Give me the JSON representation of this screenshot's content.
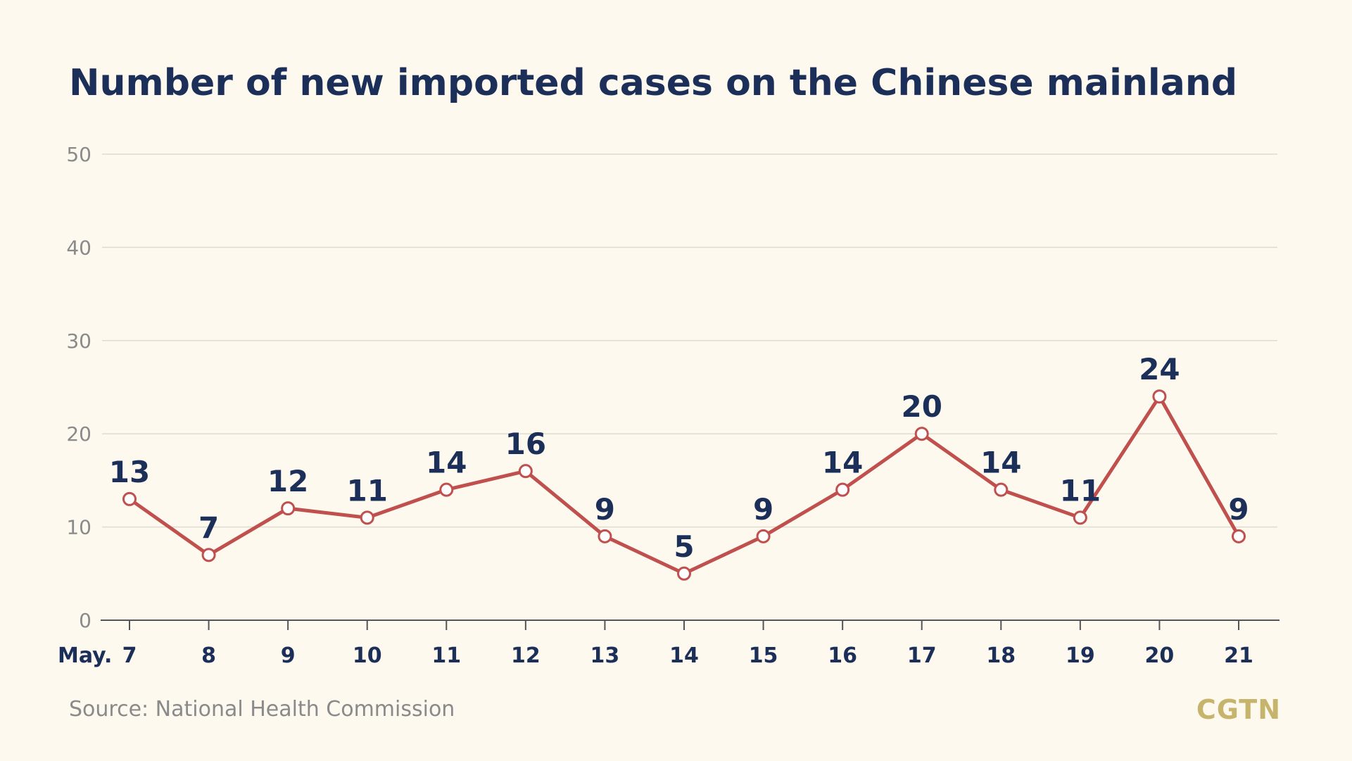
{
  "header": {
    "title": "Number of new imported cases on the Chinese mainland"
  },
  "footer": {
    "source": "Source: National Health Commission",
    "logo_text": "CGTN"
  },
  "chart_data": {
    "type": "line",
    "title": "Number of new imported cases on the Chinese mainland",
    "xlabel": "",
    "ylabel": "",
    "x_prefix": "May.",
    "categories": [
      "7",
      "8",
      "9",
      "10",
      "11",
      "12",
      "13",
      "14",
      "15",
      "16",
      "17",
      "18",
      "19",
      "20",
      "21"
    ],
    "series": [
      {
        "values": [
          13,
          7,
          12,
          11,
          14,
          16,
          9,
          5,
          9,
          14,
          20,
          14,
          11,
          24,
          9
        ]
      }
    ],
    "ylim": [
      0,
      50
    ],
    "yticks": [
      0,
      10,
      20,
      30,
      40,
      50
    ],
    "grid": true,
    "data_labels": true,
    "colors": {
      "line": "#c0504d",
      "marker_fill": "#ffffff",
      "label": "#1c2f59",
      "grid": "#dedbd0",
      "axis": "#555555",
      "background": "#fdf9ef"
    }
  }
}
